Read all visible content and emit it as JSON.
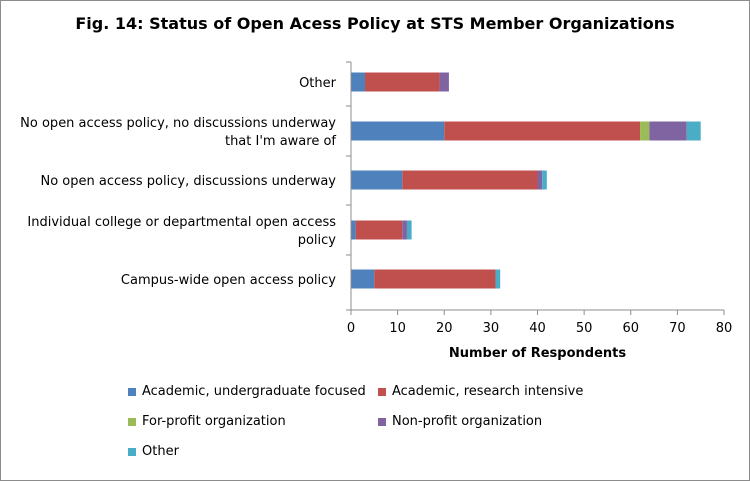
{
  "chart_data": {
    "type": "bar",
    "orientation": "horizontal",
    "stacked": true,
    "title": "Fig. 14: Status of Open Acess Policy at STS Member Organizations",
    "xlabel": "Number of Respondents",
    "ylabel": "",
    "xlim": [
      0,
      80
    ],
    "xticks": [
      0,
      10,
      20,
      30,
      40,
      50,
      60,
      70,
      80
    ],
    "grid": false,
    "legend_position": "bottom",
    "categories": [
      [
        "Other"
      ],
      [
        "No open access policy, no discussions underway",
        "that I'm aware of"
      ],
      [
        "No open access policy, discussions underway"
      ],
      [
        "Individual college or departmental open access",
        "policy"
      ],
      [
        "Campus-wide open access policy"
      ]
    ],
    "series": [
      {
        "name": "Academic, undergraduate focused",
        "color": "#4f81bd",
        "values": [
          3,
          20,
          11,
          1,
          5
        ]
      },
      {
        "name": "Academic, research intensive",
        "color": "#c0504d",
        "values": [
          16,
          42,
          29,
          10,
          26
        ]
      },
      {
        "name": "For-profit organization",
        "color": "#9bbb59",
        "values": [
          0,
          2,
          0,
          0,
          0
        ]
      },
      {
        "name": "Non-profit organization",
        "color": "#8064a2",
        "values": [
          2,
          8,
          1,
          1,
          0
        ]
      },
      {
        "name": "Other",
        "color": "#4bacc6",
        "values": [
          0,
          3,
          1,
          1,
          1
        ]
      }
    ]
  }
}
